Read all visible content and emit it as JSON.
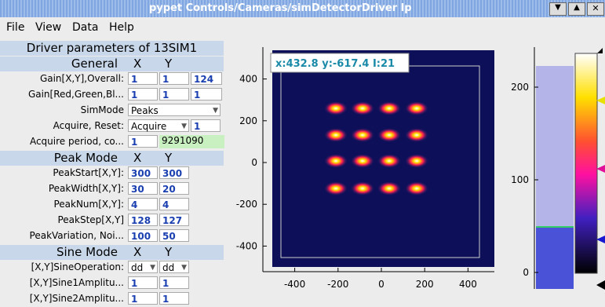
{
  "window": {
    "title": "pypet Controls/Cameras/simDetectorDriver lp"
  },
  "menu": [
    "File",
    "View",
    "Data",
    "Help"
  ],
  "panel": {
    "title": "Driver parameters of 13SIM1",
    "sections": [
      {
        "header": "General",
        "cols": [
          "X",
          "Y"
        ],
        "rows": [
          {
            "label": "Gain[X,Y],Overall:",
            "fields": [
              "1",
              "1",
              "124"
            ]
          },
          {
            "label": "Gain[Red,Green,Bl...",
            "fields": [
              "1",
              "1",
              "1"
            ]
          },
          {
            "label": "SimMode",
            "fields": [
              {
                "combo": "Peaks"
              }
            ]
          },
          {
            "label": "Acquire, Reset:",
            "fields": [
              {
                "combo": "Acquire"
              },
              "1"
            ]
          },
          {
            "label": "Acquire period, co...",
            "fields": [
              "1",
              {
                "readback": "9291090"
              }
            ]
          }
        ]
      },
      {
        "header": "Peak Mode",
        "cols": [
          "X",
          "Y"
        ],
        "rows": [
          {
            "label": "PeakStart[X,Y]:",
            "fields": [
              "300",
              "300"
            ]
          },
          {
            "label": "PeakWidth[X,Y]:",
            "fields": [
              "30",
              "20"
            ]
          },
          {
            "label": "PeakNum[X,Y]:",
            "fields": [
              "4",
              "4"
            ]
          },
          {
            "label": "PeakStep[X,Y]",
            "fields": [
              "128",
              "127"
            ]
          },
          {
            "label": "PeakVariation, Noi...",
            "fields": [
              "100",
              "50"
            ]
          }
        ]
      },
      {
        "header": "Sine Mode",
        "cols": [
          "X",
          "Y"
        ],
        "rows": [
          {
            "label": "[X,Y]SineOperation:",
            "fields": [
              {
                "combo": "dd"
              },
              {
                "combo": "dd"
              }
            ]
          },
          {
            "label": "[X,Y]Sine1Amplitu...",
            "fields": [
              "1",
              "1"
            ]
          },
          {
            "label": "[X,Y]Sine2Amplitu...",
            "fields": [
              "1",
              "1"
            ]
          }
        ]
      }
    ]
  },
  "image_plot": {
    "readout": "x:432.8 y:-617.4 I:21",
    "xticks": [
      -400,
      -200,
      0,
      200,
      400
    ],
    "yticks": [
      400,
      200,
      0,
      -200,
      -400
    ]
  },
  "histogram": {
    "yticks": [
      200,
      100,
      0
    ]
  }
}
